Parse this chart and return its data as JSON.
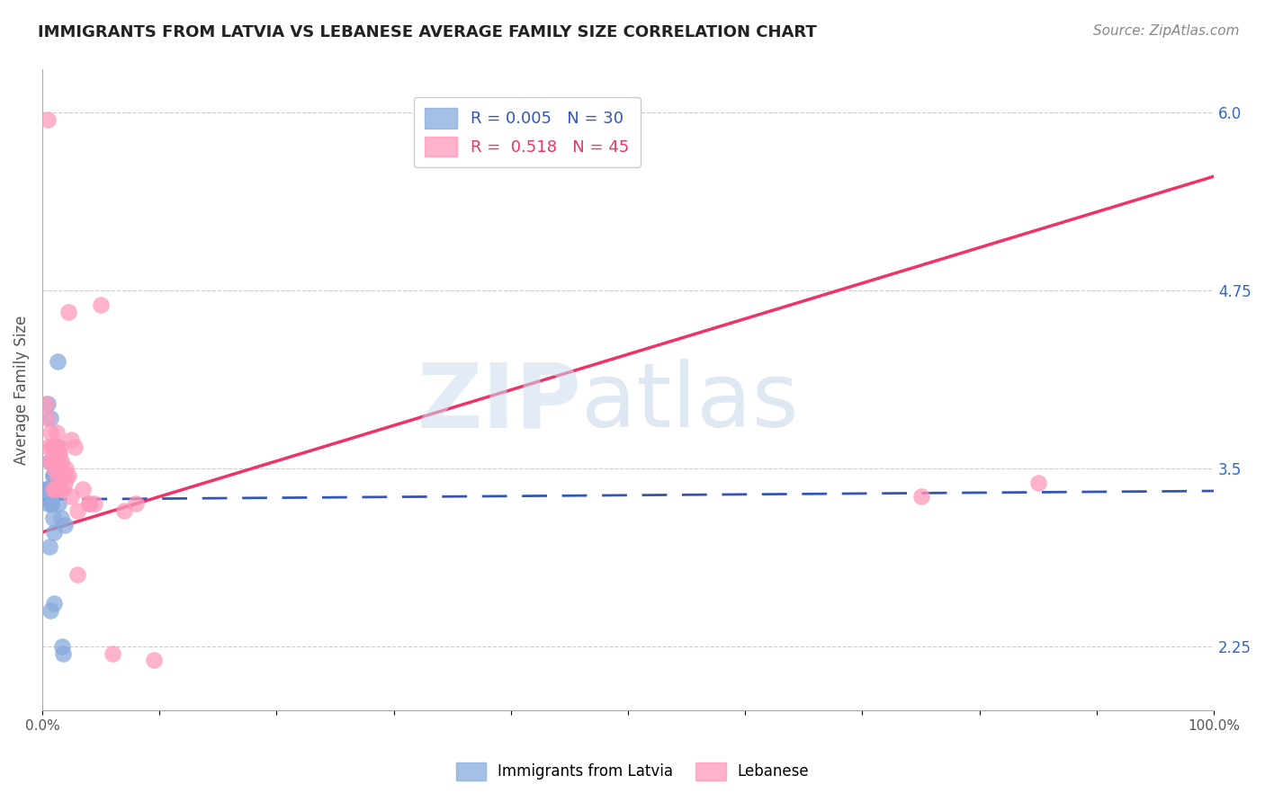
{
  "title": "IMMIGRANTS FROM LATVIA VS LEBANESE AVERAGE FAMILY SIZE CORRELATION CHART",
  "source": "Source: ZipAtlas.com",
  "ylabel": "Average Family Size",
  "xlim": [
    0,
    1.0
  ],
  "ylim": [
    1.8,
    6.3
  ],
  "xticklabels": [
    "0.0%",
    "",
    "",
    "",
    "",
    "",
    "",
    "",
    "",
    "",
    "100.0%"
  ],
  "right_yticks": [
    2.25,
    3.5,
    4.75,
    6.0
  ],
  "grid_color": "#cccccc",
  "background_color": "#ffffff",
  "legend_r1": "R = 0.005",
  "legend_n1": "N = 30",
  "legend_r2": "R =  0.518",
  "legend_n2": "N = 45",
  "blue_color": "#88aadd",
  "pink_color": "#ff99bb",
  "blue_line_color": "#3355bb",
  "pink_line_color": "#ee3366",
  "pink_line_x": [
    0.0,
    1.0
  ],
  "pink_line_y": [
    3.05,
    5.55
  ],
  "blue_line_x": [
    0.0,
    1.0
  ],
  "blue_line_y": [
    3.28,
    3.34
  ],
  "latvia_x": [
    0.003,
    0.005,
    0.006,
    0.007,
    0.008,
    0.009,
    0.01,
    0.011,
    0.012,
    0.013,
    0.014,
    0.015,
    0.016,
    0.017,
    0.018,
    0.019,
    0.007,
    0.008,
    0.009,
    0.01,
    0.011,
    0.012,
    0.013,
    0.014,
    0.004,
    0.005,
    0.006,
    0.007,
    0.008,
    0.009
  ],
  "latvia_y": [
    3.35,
    3.95,
    3.55,
    3.35,
    3.25,
    3.15,
    3.05,
    3.45,
    3.65,
    4.25,
    3.35,
    3.45,
    3.15,
    2.25,
    2.2,
    3.1,
    3.85,
    3.25,
    3.45,
    2.55,
    3.55,
    3.35,
    3.35,
    3.25,
    3.35,
    3.25,
    2.95,
    2.5,
    3.25,
    3.45
  ],
  "lebanese_x": [
    0.004,
    0.005,
    0.007,
    0.008,
    0.009,
    0.01,
    0.011,
    0.012,
    0.013,
    0.014,
    0.015,
    0.016,
    0.018,
    0.019,
    0.02,
    0.022,
    0.025,
    0.028,
    0.03,
    0.035,
    0.04,
    0.045,
    0.06,
    0.003,
    0.005,
    0.007,
    0.008,
    0.009,
    0.01,
    0.012,
    0.013,
    0.015,
    0.016,
    0.018,
    0.02,
    0.022,
    0.025,
    0.03,
    0.04,
    0.05,
    0.07,
    0.08,
    0.095,
    0.75,
    0.85
  ],
  "lebanese_y": [
    3.85,
    3.65,
    3.75,
    3.55,
    3.65,
    3.55,
    3.35,
    3.65,
    3.45,
    3.6,
    3.65,
    3.55,
    3.45,
    3.4,
    3.5,
    4.6,
    3.7,
    3.65,
    3.2,
    3.35,
    3.25,
    3.25,
    2.2,
    3.95,
    5.95,
    3.55,
    3.65,
    3.35,
    3.5,
    3.75,
    3.35,
    3.6,
    3.5,
    3.35,
    3.45,
    3.45,
    3.3,
    2.75,
    3.25,
    4.65,
    3.2,
    3.25,
    2.15,
    3.3,
    3.4
  ]
}
